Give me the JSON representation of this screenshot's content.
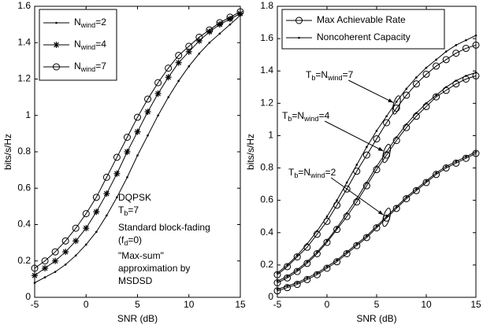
{
  "chart_data": [
    {
      "type": "line",
      "xlabel": "SNR (dB)",
      "ylabel": "bits/s/Hz",
      "x": [
        -5,
        -4,
        -3,
        -2,
        -1,
        0,
        1,
        2,
        3,
        4,
        5,
        6,
        7,
        8,
        9,
        10,
        11,
        12,
        13,
        14,
        15
      ],
      "xlim": [
        -5,
        15
      ],
      "xticks": [
        -5,
        0,
        5,
        10,
        15
      ],
      "ylim": [
        0,
        1.6
      ],
      "yticks": [
        0,
        0.2,
        0.4,
        0.6,
        0.8,
        1,
        1.2,
        1.4,
        1.6
      ],
      "series": [
        {
          "name": "Nwind=2",
          "color": "#000000",
          "marker": "dot",
          "values": [
            0.08,
            0.11,
            0.14,
            0.18,
            0.23,
            0.29,
            0.36,
            0.45,
            0.55,
            0.66,
            0.78,
            0.89,
            1.0,
            1.1,
            1.19,
            1.27,
            1.34,
            1.4,
            1.45,
            1.5,
            1.55
          ]
        },
        {
          "name": "Nwind=4",
          "color": "#000000",
          "marker": "star",
          "values": [
            0.12,
            0.16,
            0.2,
            0.25,
            0.31,
            0.38,
            0.47,
            0.57,
            0.68,
            0.8,
            0.91,
            1.02,
            1.12,
            1.21,
            1.29,
            1.35,
            1.41,
            1.46,
            1.5,
            1.53,
            1.56
          ]
        },
        {
          "name": "Nwind=7",
          "color": "#000000",
          "marker": "circle",
          "values": [
            0.16,
            0.2,
            0.25,
            0.31,
            0.38,
            0.46,
            0.55,
            0.66,
            0.77,
            0.88,
            0.99,
            1.09,
            1.18,
            1.26,
            1.33,
            1.38,
            1.43,
            1.47,
            1.51,
            1.54,
            1.57
          ]
        }
      ],
      "legend": "upper left",
      "annotation": [
        "DQPSK",
        "Tb=7",
        "Standard block-fading",
        "(fd=0)",
        "\"Max-sum\"",
        "approximation by",
        "MSDSD"
      ]
    },
    {
      "type": "line",
      "xlabel": "SNR (dB)",
      "ylabel": "bits/s/Hz",
      "x": [
        -5,
        -4,
        -3,
        -2,
        -1,
        0,
        1,
        2,
        3,
        4,
        5,
        6,
        7,
        8,
        9,
        10,
        11,
        12,
        13,
        14,
        15
      ],
      "xlim": [
        -5,
        15
      ],
      "xticks": [
        -5,
        0,
        5,
        10,
        15
      ],
      "ylim": [
        0,
        1.8
      ],
      "yticks": [
        0,
        0.2,
        0.4,
        0.6,
        0.8,
        1,
        1.2,
        1.4,
        1.6,
        1.8
      ],
      "legend": "upper left",
      "series": [
        {
          "name": "Max Achievable Rate",
          "color": "#000000",
          "marker": "circle",
          "curves": [
            [
              0.14,
              0.19,
              0.25,
              0.31,
              0.39,
              0.47,
              0.57,
              0.67,
              0.78,
              0.88,
              0.98,
              1.08,
              1.17,
              1.25,
              1.32,
              1.38,
              1.43,
              1.47,
              1.51,
              1.54,
              1.56
            ],
            [
              0.09,
              0.12,
              0.16,
              0.21,
              0.27,
              0.34,
              0.42,
              0.5,
              0.59,
              0.69,
              0.79,
              0.88,
              0.97,
              1.05,
              1.12,
              1.18,
              1.24,
              1.28,
              1.32,
              1.35,
              1.37
            ],
            [
              0.04,
              0.06,
              0.08,
              0.11,
              0.14,
              0.18,
              0.22,
              0.27,
              0.32,
              0.37,
              0.43,
              0.49,
              0.55,
              0.61,
              0.66,
              0.71,
              0.76,
              0.8,
              0.83,
              0.86,
              0.89
            ]
          ]
        },
        {
          "name": "Noncoherent Capacity",
          "color": "#000000",
          "marker": "dot",
          "curves": [
            [
              0.15,
              0.2,
              0.26,
              0.33,
              0.41,
              0.5,
              0.6,
              0.71,
              0.82,
              0.93,
              1.03,
              1.12,
              1.21,
              1.29,
              1.36,
              1.42,
              1.47,
              1.52,
              1.56,
              1.59,
              1.62
            ],
            [
              0.1,
              0.13,
              0.17,
              0.22,
              0.28,
              0.35,
              0.43,
              0.52,
              0.61,
              0.71,
              0.81,
              0.9,
              0.99,
              1.07,
              1.14,
              1.2,
              1.25,
              1.3,
              1.34,
              1.37,
              1.39
            ],
            [
              0.05,
              0.07,
              0.09,
              0.12,
              0.15,
              0.19,
              0.23,
              0.28,
              0.33,
              0.38,
              0.44,
              0.5,
              0.56,
              0.62,
              0.67,
              0.72,
              0.77,
              0.81,
              0.84,
              0.87,
              0.9
            ]
          ]
        }
      ],
      "curve_labels": [
        "Tb=Nwind=7",
        "Tb=Nwind=4",
        "Tb=Nwind=2"
      ]
    }
  ]
}
